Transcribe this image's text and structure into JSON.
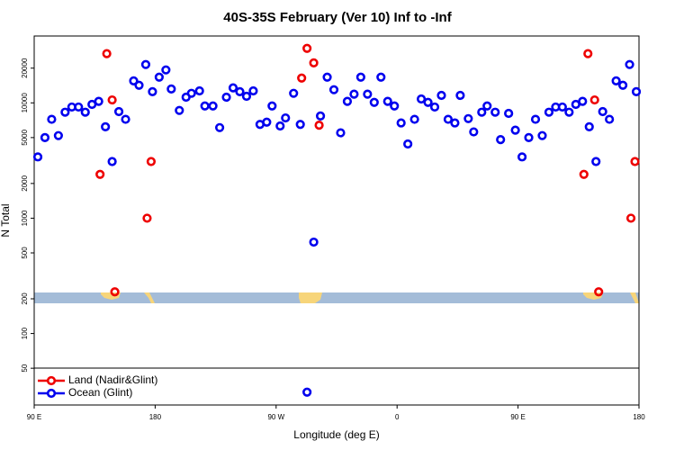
{
  "chart_data": {
    "type": "scatter",
    "title": "40S-35S February (Ver 10)   Inf to -Inf",
    "xlabel": "Longitude (deg E)",
    "ylabel": "N Total",
    "log_y": true,
    "legend": "bottom-left",
    "xlim": [
      90,
      540
    ],
    "ylim": [
      24,
      38000
    ],
    "xticks": [
      {
        "value": 90,
        "label": "90 E"
      },
      {
        "value": 180,
        "label": "180"
      },
      {
        "value": 270,
        "label": "90 W"
      },
      {
        "value": 360,
        "label": "0"
      },
      {
        "value": 450,
        "label": "90 E"
      },
      {
        "value": 540,
        "label": "180"
      }
    ],
    "yticks": [
      50,
      100,
      200,
      500,
      1000,
      2000,
      5000,
      10000,
      20000
    ],
    "series": [
      {
        "name": "Ocean (Glint)",
        "color": "#0000ee",
        "x": [
          92.7,
          98,
          103,
          108,
          113,
          118,
          123,
          128,
          133,
          138,
          143,
          148,
          153,
          158,
          164,
          168,
          173,
          178,
          183,
          188,
          192,
          198,
          203,
          207,
          213,
          217,
          223,
          228,
          233,
          238,
          243,
          248,
          253,
          258,
          263,
          267,
          273,
          277,
          283,
          288,
          298,
          303,
          308,
          313,
          318,
          323,
          328,
          333,
          338,
          343,
          348,
          353,
          358,
          363,
          368,
          373,
          378,
          383,
          388,
          393,
          398,
          403,
          407,
          413,
          417,
          423,
          427,
          433,
          437,
          443,
          448,
          453,
          458,
          463,
          468,
          473,
          478,
          483,
          488,
          493,
          498,
          503,
          508,
          513,
          518,
          523,
          528,
          533,
          538,
          293
        ],
        "values": [
          3400,
          5000,
          7200,
          5200,
          8300,
          9200,
          9200,
          8300,
          9700,
          10300,
          6200,
          3100,
          8400,
          7200,
          15500,
          14200,
          21500,
          12500,
          16700,
          19300,
          13200,
          8600,
          11200,
          12100,
          12700,
          9400,
          9400,
          6100,
          11200,
          13500,
          12500,
          11400,
          12700,
          6500,
          6800,
          9400,
          6300,
          7400,
          12100,
          6500,
          620,
          7700,
          16700,
          13000,
          5500,
          10300,
          11900,
          16700,
          11900,
          10100,
          16700,
          10300,
          9400,
          6700,
          4400,
          7200,
          10800,
          10100,
          9200,
          11600,
          7200,
          6700,
          11600,
          7300,
          5600,
          8300,
          9400,
          8300,
          4800,
          8100,
          5800,
          3400,
          5000,
          7200,
          5200,
          8300,
          9200,
          9200,
          8300,
          9700,
          10300,
          6200,
          3100,
          8400,
          7200,
          15500,
          14200,
          21500,
          12500,
          31
        ]
      },
      {
        "name": "Land (Nadir&Glint)",
        "color": "#ee0000",
        "x": [
          139,
          144,
          148,
          150,
          174,
          177,
          289,
          293,
          298,
          302,
          499,
          502,
          507,
          510,
          534,
          537
        ],
        "values": [
          2400,
          26700,
          10600,
          230,
          1000,
          3100,
          16400,
          29700,
          22200,
          6400,
          2400,
          26700,
          10600,
          230,
          1000,
          3100
        ]
      }
    ]
  }
}
